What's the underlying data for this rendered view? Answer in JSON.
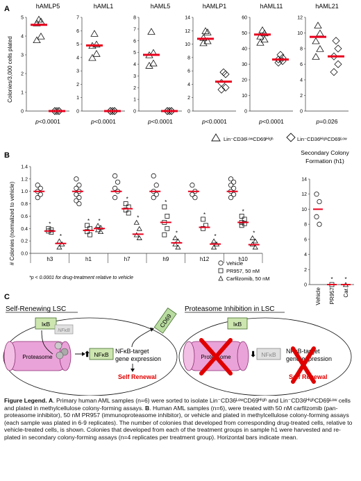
{
  "panel_a": {
    "label": "A",
    "ylabel": "Colonies/3,000 cells plated",
    "legend_low": "Lin⁻CD36ᴸᵒʷCD69ᴴⁱᵍʰ",
    "legend_high": "Lin⁻CD36ᴴⁱᵍʰCD69ᴸᵒʷ",
    "samples": [
      {
        "name": "hAMLP5",
        "ymax": 5,
        "ticks": [
          0,
          1,
          2,
          3,
          4,
          5
        ],
        "low_points": [
          4.9,
          4.8,
          4.7,
          4.0,
          3.8
        ],
        "high_points": [
          0,
          0,
          0,
          0,
          0
        ],
        "low_mean": 4.6,
        "high_mean": 0,
        "pvalue": "p<0.0001"
      },
      {
        "name": "hAML1",
        "ymax": 7,
        "ticks": [
          0,
          1,
          2,
          3,
          4,
          5,
          6,
          7
        ],
        "low_points": [
          5.8,
          5.0,
          4.9,
          4.3,
          4.0
        ],
        "high_points": [
          0,
          0,
          0,
          0,
          0
        ],
        "low_mean": 4.9,
        "high_mean": 0,
        "pvalue": "p<0.0001"
      },
      {
        "name": "hAML5",
        "ymax": 8,
        "ticks": [
          0,
          1,
          2,
          3,
          4,
          5,
          6,
          7,
          8
        ],
        "low_points": [
          6.8,
          5.0,
          4.8,
          4.1,
          3.9
        ],
        "high_points": [
          0,
          0,
          0,
          0,
          0
        ],
        "low_mean": 4.8,
        "high_mean": 0,
        "pvalue": "p<0.0001"
      },
      {
        "name": "hAMLP1",
        "ymax": 14,
        "ticks": [
          0,
          2,
          4,
          6,
          8,
          10,
          12,
          14
        ],
        "low_points": [
          12.0,
          11.8,
          11.0,
          10.5,
          10.2
        ],
        "high_points": [
          5.8,
          5.5,
          4.2,
          3.5,
          3.2
        ],
        "low_mean": 10.8,
        "high_mean": 4.4,
        "pvalue": "p<0.0001"
      },
      {
        "name": "hAML11",
        "ymax": 60,
        "ticks": [
          0,
          10,
          20,
          30,
          40,
          50,
          60
        ],
        "low_points": [
          52,
          50,
          48,
          46,
          44
        ],
        "high_points": [
          36,
          34,
          33,
          32,
          31
        ],
        "low_mean": 49,
        "high_mean": 33,
        "pvalue": "p<0.0001"
      },
      {
        "name": "hAML21",
        "ymax": 12,
        "ticks": [
          0,
          2,
          4,
          6,
          8,
          10,
          12
        ],
        "low_points": [
          11,
          10,
          9,
          8,
          7
        ],
        "high_points": [
          9,
          8,
          7,
          6,
          5
        ],
        "low_mean": 9.5,
        "high_mean": 7,
        "pvalue": "p=0.026"
      }
    ]
  },
  "panel_b": {
    "label": "B",
    "ylabel": "# Colonies (normalized to vehicle)",
    "yticks": [
      "0.0",
      "0.2",
      "0.4",
      "0.6",
      "0.8",
      "1.0",
      "1.2",
      "1.4"
    ],
    "footnote": "*p < 0.0001 for drug-treatment relative to vehicle",
    "legend": [
      "Vehicle",
      "PR957, 50 nM",
      "Carfilzomib, 50 nM"
    ],
    "star": "*",
    "groups": [
      {
        "name": "h3",
        "vehicle": [
          1.1,
          1.05,
          1.0,
          0.95,
          0.9
        ],
        "pr957": [
          0.4,
          0.38,
          0.36,
          0.34
        ],
        "carf": [
          0.2,
          0.15,
          0.1
        ],
        "means": [
          1.0,
          0.36,
          0.16
        ]
      },
      {
        "name": "h1",
        "vehicle": [
          1.2,
          1.1,
          1.05,
          1.0,
          0.95,
          0.9,
          0.85,
          0.8
        ],
        "pr957": [
          0.45,
          0.4,
          0.35,
          0.3
        ],
        "carf": [
          0.45,
          0.42,
          0.38,
          0.35
        ],
        "means": [
          1.0,
          0.37,
          0.4
        ]
      },
      {
        "name": "h7",
        "vehicle": [
          1.25,
          1.15,
          1.05,
          1.0,
          0.9
        ],
        "pr957": [
          0.8,
          0.75,
          0.7,
          0.65
        ],
        "carf": [
          0.5,
          0.4,
          0.3,
          0.25
        ],
        "means": [
          1.0,
          0.72,
          0.31
        ]
      },
      {
        "name": "h9",
        "vehicle": [
          1.25,
          1.1,
          1.0,
          0.95,
          0.9
        ],
        "pr957": [
          0.75,
          0.6,
          0.5,
          0.4,
          0.3
        ],
        "carf": [
          0.25,
          0.2,
          0.15,
          0.1
        ],
        "means": [
          1.0,
          0.5,
          0.17
        ]
      },
      {
        "name": "h12",
        "vehicle": [
          1.1,
          1.0,
          0.95,
          0.9
        ],
        "pr957": [
          0.55,
          0.45,
          0.4
        ],
        "carf": [
          0.2,
          0.15,
          0.1
        ],
        "means": [
          1.0,
          0.42,
          0.15
        ]
      },
      {
        "name": "h10",
        "vehicle": [
          1.2,
          1.15,
          1.1,
          1.05,
          1.0,
          0.95,
          0.9
        ],
        "pr957": [
          0.6,
          0.55,
          0.5,
          0.48,
          0.45
        ],
        "carf": [
          0.25,
          0.2,
          0.15,
          0.1
        ],
        "means": [
          1.0,
          0.5,
          0.14
        ]
      }
    ],
    "secondary": {
      "title_1": "Secondary Colony",
      "title_2": "Formation (h1)",
      "yticks": [
        "0",
        "2",
        "4",
        "6",
        "8",
        "10",
        "12",
        "14"
      ],
      "categories": [
        "Vehicle",
        "PR957",
        "Car."
      ],
      "vehicle": [
        12,
        11,
        9,
        8
      ],
      "means": [
        10,
        0,
        0
      ]
    }
  },
  "panel_c": {
    "label": "C",
    "left_title": "Self-Renewing LSC",
    "right_title": "Proteasome Inhibition in LSC",
    "ikb": "IκB",
    "nfkb": "NFκB",
    "proteasome": "Proteasome",
    "cd69": "CD69",
    "target_1": "NFκB-target",
    "target_2": "gene expression",
    "self_renewal": "Self Renewal",
    "right_target_1": "NFκB-target",
    "right_target_2": "gene expression",
    "right_self_renewal": "Self Renewal"
  },
  "legend_text": {
    "heading": "Figure Legend.",
    "a_label": "A",
    "a_text": ". Primary human AML samples (n=6) were sorted to isolate Lin⁻CD36ᴸᵒʷCD69ᴴⁱᵍʰ and Lin⁻CD36ᴴⁱᵍʰCD69ᴸᵒʷ cells and plated in methylcellulose colony-forming assays.",
    "b_label": "B",
    "b_text": ". Human AML samples (n=6), were treated with 50 nM carfilzomib (pan-proteasome inhibitor), 50 nM PR957 (immunoproteasome inhibitor), or vehicle and plated in methylcellulose colony-forming assays (each sample was plated in 6-9 replicates). The number of colonies that developed from corresponding drug-treated cells, relative to vehicle-treated cells, is shown. Colonies that developed from each of the treatment groups in sample h1 were harvested and re-plated in secondary colony-forming assays (n=4 replicates per treatment group). Horizontal bars indicate mean."
  },
  "colors": {
    "mean_bar": "#e8001c",
    "cd69": "#b9dca0",
    "nfkb_green": "#cde6b0",
    "proteasome": "#e8a0d8",
    "nfkb_grey": "#d0d0d0",
    "cross": "#e00000"
  }
}
